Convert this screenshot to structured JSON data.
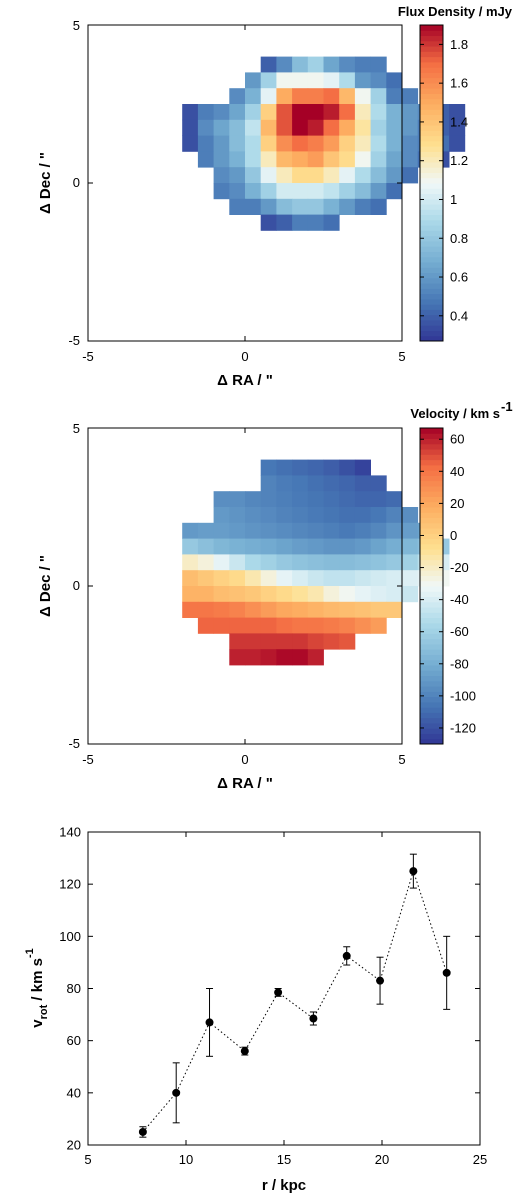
{
  "charts": [
    {
      "type": "heatmap",
      "title": "",
      "xlabel": "Δ RA / \"",
      "ylabel": "Δ Dec / \"",
      "xlim": [
        -5,
        5
      ],
      "ylim": [
        -5,
        5
      ],
      "xticks": [
        "-5",
        "0",
        "5"
      ],
      "yticks": [
        "-5",
        "0",
        "5"
      ],
      "colorbar": {
        "label": "Flux Density / mJy",
        "range": [
          0.27,
          1.9
        ],
        "ticks": [
          "0.4",
          "0.6",
          "0.8",
          "1",
          "1.2",
          "1.4",
          "1.6",
          "1.8"
        ]
      },
      "grid": {
        "x0": -2.0,
        "y_top": 4.0,
        "cell": 0.5,
        "values": [
          [
            null,
            null,
            null,
            null,
            null,
            0.4,
            0.55,
            0.75,
            0.85,
            0.65,
            0.55,
            0.5,
            0.5,
            null,
            null,
            null,
            null,
            null
          ],
          [
            null,
            null,
            null,
            null,
            0.6,
            0.85,
            1.1,
            1.1,
            1.1,
            1.05,
            0.9,
            0.6,
            0.55,
            0.45,
            null,
            null,
            null,
            null
          ],
          [
            null,
            null,
            null,
            0.55,
            0.7,
            1.05,
            1.5,
            1.65,
            1.65,
            1.7,
            1.45,
            1.1,
            0.85,
            0.5,
            0.5,
            null,
            null,
            null
          ],
          [
            0.35,
            0.5,
            0.55,
            0.65,
            0.85,
            1.35,
            1.75,
            1.9,
            1.9,
            1.85,
            1.7,
            1.2,
            0.9,
            0.7,
            0.6,
            0.55,
            0.4,
            0.35
          ],
          [
            0.35,
            0.55,
            0.65,
            0.75,
            0.95,
            1.45,
            1.75,
            1.9,
            1.85,
            1.7,
            1.5,
            1.25,
            0.85,
            0.7,
            0.6,
            0.5,
            0.4,
            0.35
          ],
          [
            0.35,
            0.5,
            0.6,
            0.75,
            0.9,
            1.35,
            1.6,
            1.7,
            1.65,
            1.55,
            1.35,
            1.2,
            0.9,
            0.7,
            0.55,
            0.5,
            0.45,
            0.35
          ],
          [
            null,
            0.5,
            0.6,
            0.7,
            0.9,
            1.2,
            1.45,
            1.5,
            1.55,
            1.4,
            1.3,
            1.1,
            0.85,
            0.65,
            0.55,
            0.45,
            0.35,
            null
          ],
          [
            null,
            null,
            0.55,
            0.6,
            0.8,
            1.05,
            1.2,
            1.3,
            1.3,
            1.2,
            1.05,
            0.9,
            0.75,
            0.6,
            0.45,
            null,
            null,
            null
          ],
          [
            null,
            null,
            0.5,
            0.55,
            0.7,
            0.85,
            1.0,
            1.0,
            1.0,
            0.95,
            0.85,
            0.75,
            0.6,
            0.45,
            null,
            null,
            null,
            null
          ],
          [
            null,
            null,
            null,
            0.5,
            0.5,
            0.6,
            0.75,
            0.8,
            0.8,
            0.7,
            0.6,
            0.5,
            0.45,
            null,
            null,
            null,
            null,
            null
          ],
          [
            null,
            null,
            null,
            null,
            null,
            0.35,
            0.4,
            0.5,
            0.5,
            0.45,
            null,
            null,
            null,
            null,
            null,
            null,
            null,
            null
          ]
        ]
      }
    },
    {
      "type": "heatmap",
      "title": "",
      "xlabel": "Δ RA / \"",
      "ylabel": "Δ Dec / \"",
      "xlim": [
        -5,
        5
      ],
      "ylim": [
        -5,
        5
      ],
      "xticks": [
        "-5",
        "0",
        "5"
      ],
      "yticks": [
        "-5",
        "0",
        "5"
      ],
      "colorbar": {
        "label": "Velocity / km s",
        "label_sup": "-1",
        "range": [
          -130,
          67
        ],
        "ticks": [
          "-120",
          "-100",
          "-80",
          "-60",
          "-40",
          "-20",
          "0",
          "20",
          "40",
          "60"
        ]
      },
      "grid": {
        "x0": -2.0,
        "y_top": 4.0,
        "cell": 0.5,
        "values": [
          [
            null,
            null,
            null,
            null,
            null,
            -105,
            -108,
            -110,
            -112,
            -115,
            -120,
            -125,
            null,
            null,
            null,
            null,
            null,
            null
          ],
          [
            null,
            null,
            null,
            null,
            null,
            -100,
            -103,
            -105,
            -108,
            -110,
            -112,
            -115,
            -115,
            null,
            null,
            null,
            null,
            null
          ],
          [
            null,
            null,
            -95,
            -95,
            -98,
            -100,
            -102,
            -104,
            -106,
            -108,
            -110,
            -112,
            -112,
            -110,
            null,
            null,
            null,
            null
          ],
          [
            null,
            null,
            -90,
            -92,
            -95,
            -97,
            -100,
            -102,
            -104,
            -106,
            -108,
            -108,
            -105,
            -100,
            -95,
            null,
            null,
            null
          ],
          [
            -90,
            -88,
            -88,
            -90,
            -92,
            -94,
            -96,
            -98,
            -100,
            -102,
            -104,
            -102,
            -98,
            -92,
            -88,
            -85,
            null,
            null
          ],
          [
            -65,
            -70,
            -75,
            -78,
            -80,
            -82,
            -85,
            -88,
            -90,
            -92,
            -92,
            -90,
            -85,
            -80,
            -75,
            -70,
            -65,
            null
          ],
          [
            -20,
            -25,
            -35,
            -45,
            -55,
            -60,
            -65,
            -68,
            -70,
            -72,
            -72,
            -70,
            -68,
            -65,
            -60,
            -50,
            -40,
            null
          ],
          [
            10,
            5,
            0,
            -5,
            -15,
            -25,
            -35,
            -40,
            -45,
            -48,
            -48,
            -45,
            -42,
            -40,
            -38,
            -35,
            -30,
            null
          ],
          [
            15,
            15,
            10,
            8,
            5,
            0,
            -5,
            -10,
            -15,
            -25,
            -30,
            -35,
            -38,
            -40,
            -45,
            null,
            null,
            null
          ],
          [
            40,
            40,
            38,
            35,
            30,
            25,
            20,
            18,
            15,
            12,
            10,
            8,
            5,
            5,
            null,
            null,
            null,
            null
          ],
          [
            null,
            45,
            45,
            45,
            45,
            45,
            42,
            40,
            40,
            38,
            35,
            30,
            25,
            null,
            null,
            null,
            null,
            null
          ],
          [
            null,
            null,
            null,
            55,
            55,
            55,
            55,
            55,
            52,
            50,
            48,
            null,
            null,
            null,
            null,
            null,
            null,
            null
          ],
          [
            null,
            null,
            null,
            60,
            60,
            62,
            65,
            65,
            60,
            null,
            null,
            null,
            null,
            null,
            null,
            null,
            null,
            null
          ]
        ]
      }
    },
    {
      "type": "scatter",
      "title": "",
      "xlabel": "r / kpc",
      "ylabel": "v",
      "ylabel_sub": "rot",
      "ylabel_rest": " / km s",
      "ylabel_sup": "-1",
      "xlim": [
        5,
        25
      ],
      "ylim": [
        20,
        140
      ],
      "xticks": [
        "5",
        "10",
        "15",
        "20",
        "25"
      ],
      "yticks": [
        "20",
        "40",
        "60",
        "80",
        "100",
        "120",
        "140"
      ],
      "x": [
        7.8,
        9.5,
        11.2,
        13.0,
        14.7,
        16.5,
        18.2,
        19.9,
        21.6,
        23.3
      ],
      "y": [
        25,
        40,
        67,
        56,
        78.5,
        68.5,
        92.5,
        83,
        125,
        86
      ],
      "err": [
        2,
        11.5,
        13,
        1.5,
        1.5,
        2.5,
        3.5,
        9,
        6.5,
        14
      ],
      "line_style": "dotted"
    }
  ]
}
